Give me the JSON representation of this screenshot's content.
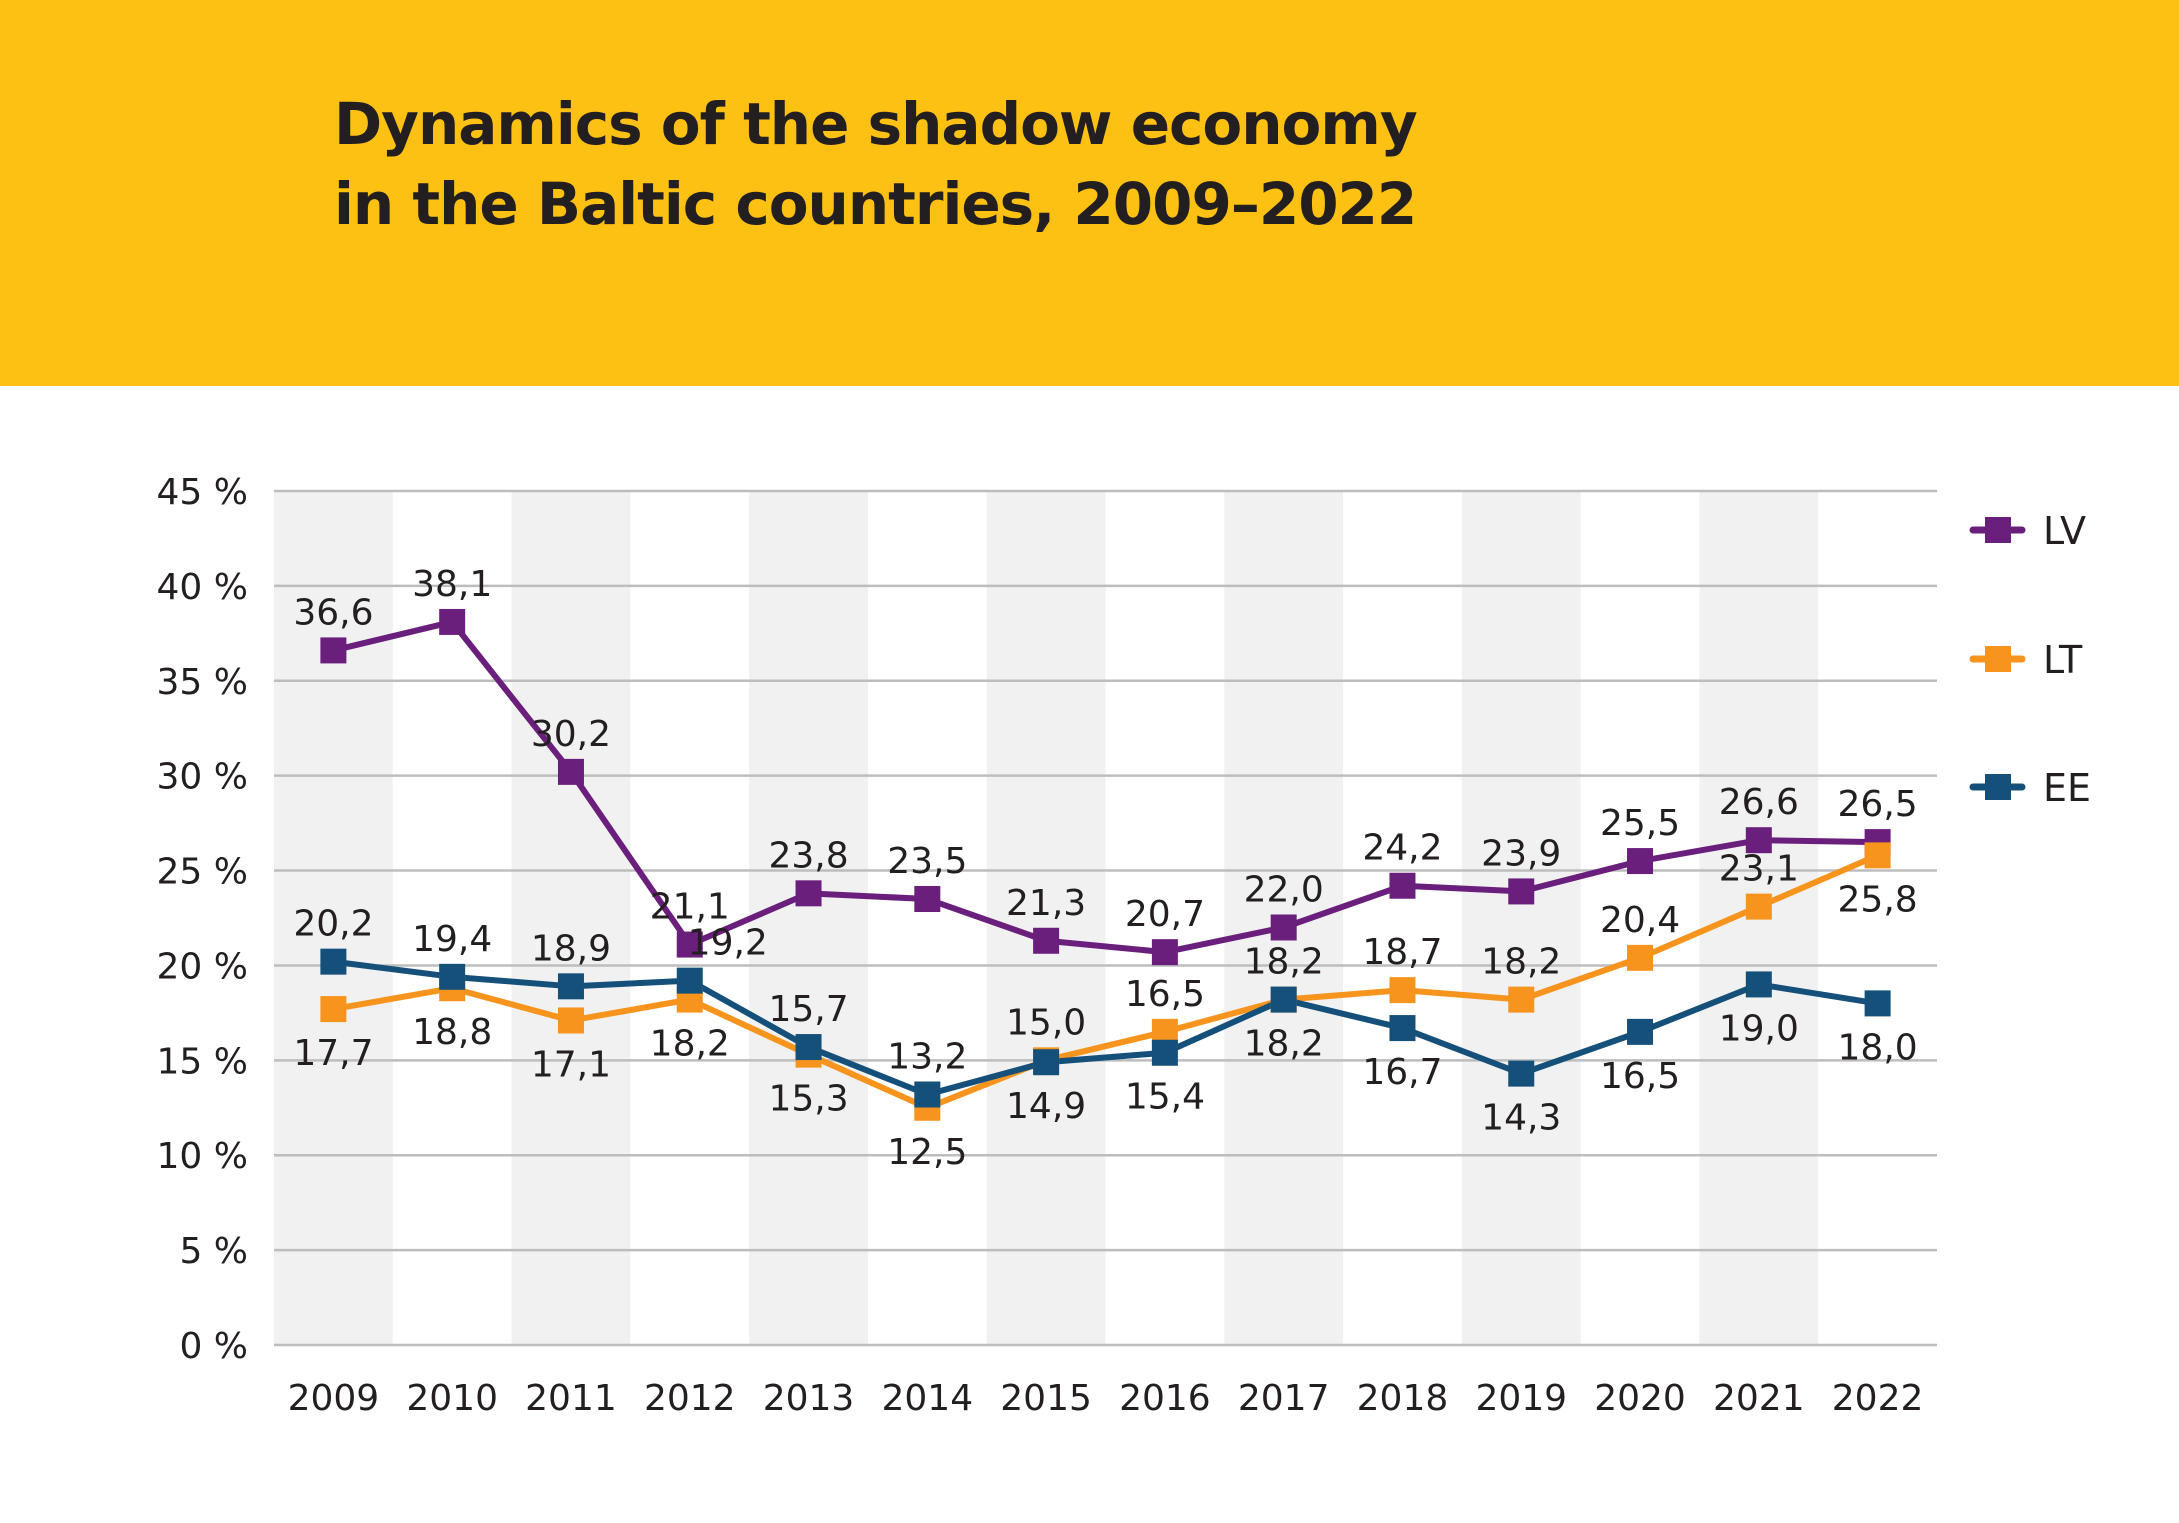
{
  "chart_data": {
    "type": "line",
    "title_lines": [
      "Dynamics of the shadow economy",
      "in the Baltic countries, 2009–2022"
    ],
    "categories": [
      "2009",
      "2010",
      "2011",
      "2012",
      "2013",
      "2014",
      "2015",
      "2016",
      "2017",
      "2018",
      "2019",
      "2020",
      "2021",
      "2022"
    ],
    "ylim": [
      0,
      45
    ],
    "yticks": [
      0,
      5,
      10,
      15,
      20,
      25,
      30,
      35,
      40,
      45
    ],
    "ytick_labels": [
      "0 %",
      "5 %",
      "10 %",
      "15 %",
      "20 %",
      "25 %",
      "30 %",
      "35 %",
      "40 %",
      "45 %"
    ],
    "grid": true,
    "legend_position": "right",
    "header_color": "#fdc113",
    "band_color": "#f0f1f0",
    "series": [
      {
        "name": "LV",
        "color": "#6b1f7c",
        "values": [
          36.6,
          38.1,
          30.2,
          21.1,
          23.8,
          23.5,
          21.3,
          20.7,
          22.0,
          24.2,
          23.9,
          25.5,
          26.6,
          26.5
        ],
        "labels": [
          "36,6",
          "38,1",
          "30,2",
          "21,1",
          "23,8",
          "23,5",
          "21,3",
          "20,7",
          "22,0",
          "24,2",
          "23,9",
          "25,5",
          "26,6",
          "26,5"
        ]
      },
      {
        "name": "LT",
        "color": "#f7941d",
        "values": [
          17.7,
          18.8,
          17.1,
          18.2,
          15.3,
          12.5,
          15.0,
          16.5,
          18.2,
          18.7,
          18.2,
          20.4,
          23.1,
          25.8
        ],
        "labels": [
          "17,7",
          "18,8",
          "17,1",
          "18,2",
          "15,3",
          "12,5",
          "15,0",
          "16,5",
          "18,2",
          "18,7",
          "18,2",
          "20,4",
          "23,1",
          "25,8"
        ]
      },
      {
        "name": "EE",
        "color": "#15507a",
        "values": [
          20.2,
          19.4,
          18.9,
          19.2,
          15.7,
          13.2,
          14.9,
          15.4,
          18.2,
          16.7,
          14.3,
          16.5,
          19.0,
          18.0
        ],
        "labels": [
          "20,2",
          "19,4",
          "18,9",
          "19,2",
          "15,7",
          "13,2",
          "14,9",
          "15,4",
          "18,2",
          "16,7",
          "14,3",
          "16,5",
          "19,0",
          "18,0"
        ]
      }
    ]
  }
}
